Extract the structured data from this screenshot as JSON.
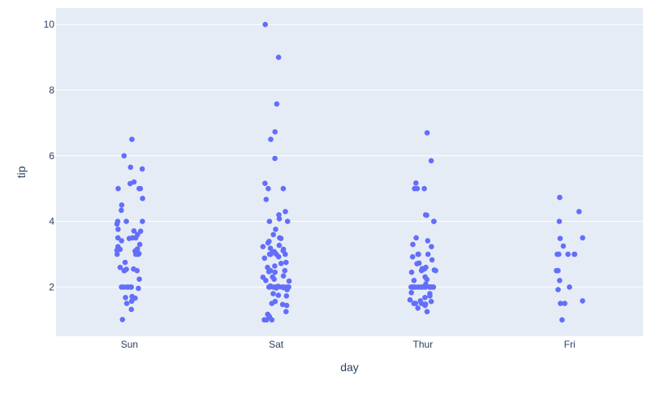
{
  "chart_data": {
    "type": "scatter",
    "title": "",
    "xlabel": "day",
    "ylabel": "tip",
    "categories": [
      "Sun",
      "Sat",
      "Thur",
      "Fri"
    ],
    "ylim": [
      0.5,
      10.5
    ],
    "yticks": [
      2,
      4,
      6,
      8,
      10
    ],
    "grid": true,
    "legend": "none",
    "colors": {
      "marker": "#636efa",
      "plot_bg": "#e5ecf6",
      "grid": "#ffffff",
      "text": "#2a3f5f"
    },
    "series": [
      {
        "category": "Sun",
        "values": [
          6.5,
          6.0,
          5.65,
          5.6,
          5.2,
          5.15,
          5.0,
          5.0,
          5.0,
          4.7,
          4.5,
          4.34,
          4.0,
          4.0,
          4.0,
          3.92,
          3.76,
          3.71,
          3.7,
          3.6,
          3.5,
          3.5,
          3.5,
          3.48,
          3.41,
          3.3,
          3.23,
          3.16,
          3.15,
          3.12,
          3.1,
          3.07,
          3.02,
          3.0,
          3.0,
          3.0,
          3.0,
          2.75,
          2.6,
          2.55,
          2.54,
          2.5,
          2.5,
          2.5,
          2.24,
          2.0,
          2.0,
          2.0,
          2.0,
          2.0,
          2.0,
          1.96,
          1.71,
          1.68,
          1.66,
          1.57,
          1.5,
          1.32,
          1.01
        ]
      },
      {
        "category": "Sat",
        "values": [
          10.0,
          9.0,
          7.58,
          6.73,
          6.5,
          5.92,
          5.16,
          5.0,
          5.0,
          4.67,
          4.3,
          4.2,
          4.08,
          4.0,
          4.0,
          3.76,
          3.6,
          3.5,
          3.48,
          3.39,
          3.35,
          3.27,
          3.23,
          3.18,
          3.15,
          3.11,
          3.08,
          3.06,
          3.0,
          3.0,
          3.0,
          3.0,
          3.0,
          2.92,
          2.88,
          2.75,
          2.72,
          2.64,
          2.6,
          2.5,
          2.5,
          2.47,
          2.45,
          2.34,
          2.31,
          2.3,
          2.24,
          2.2,
          2.18,
          2.03,
          2.02,
          2.01,
          2.0,
          2.0,
          2.0,
          2.0,
          2.0,
          2.0,
          2.0,
          2.0,
          2.0,
          2.0,
          1.98,
          1.97,
          1.92,
          1.8,
          1.75,
          1.73,
          1.56,
          1.5,
          1.47,
          1.44,
          1.25,
          1.17,
          1.1,
          1.0,
          1.0,
          1.0
        ]
      },
      {
        "category": "Thur",
        "values": [
          6.7,
          5.85,
          5.17,
          5.0,
          5.0,
          5.0,
          4.2,
          4.19,
          4.0,
          4.0,
          3.5,
          3.41,
          3.3,
          3.23,
          3.0,
          3.0,
          3.0,
          2.92,
          2.83,
          2.73,
          2.71,
          2.6,
          2.56,
          2.55,
          2.52,
          2.5,
          2.5,
          2.45,
          2.31,
          2.23,
          2.2,
          2.09,
          2.0,
          2.0,
          2.0,
          2.0,
          2.0,
          2.0,
          2.0,
          2.0,
          2.0,
          2.0,
          2.0,
          2.0,
          2.0,
          1.83,
          1.8,
          1.73,
          1.68,
          1.61,
          1.58,
          1.56,
          1.5,
          1.5,
          1.5,
          1.5,
          1.48,
          1.44,
          1.36,
          1.25
        ]
      },
      {
        "category": "Fri",
        "values": [
          4.73,
          4.3,
          4.0,
          3.5,
          3.48,
          3.25,
          3.0,
          3.0,
          3.0,
          3.0,
          3.0,
          2.5,
          2.5,
          2.2,
          2.0,
          1.92,
          1.58,
          1.5,
          1.5,
          1.0
        ]
      }
    ]
  }
}
